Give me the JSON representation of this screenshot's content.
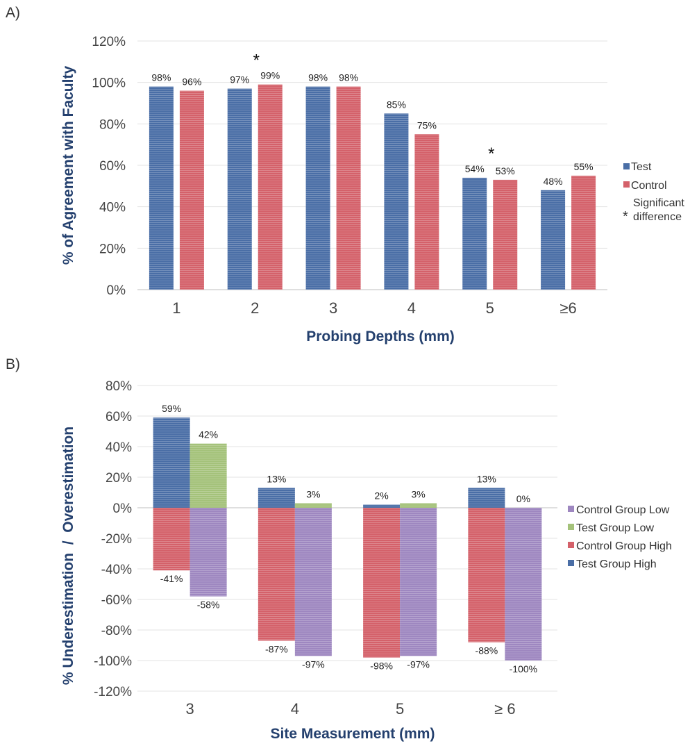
{
  "colors": {
    "test": "#4a6ea6",
    "control": "#d4616a",
    "test_low": "#a4c27a",
    "control_low": "#9e87c0",
    "axis_title": "#24406e",
    "grid": "#e3e3e3"
  },
  "chart_data": [
    {
      "panel_label": "A)",
      "type": "bar",
      "categories": [
        "1",
        "2",
        "3",
        "4",
        "5",
        "≥6"
      ],
      "series": [
        {
          "name": "Test",
          "values": [
            98,
            97,
            98,
            85,
            54,
            48
          ],
          "labels": [
            "98%",
            "97%",
            "98%",
            "85%",
            "54%",
            "48%"
          ]
        },
        {
          "name": "Control",
          "values": [
            96,
            99,
            98,
            75,
            53,
            55
          ],
          "labels": [
            "96%",
            "99%",
            "98%",
            "75%",
            "53%",
            "55%"
          ]
        }
      ],
      "xlabel": "Probing Depths (mm)",
      "ylabel": "% of Agreement with Faculty",
      "ylim": [
        0,
        120
      ],
      "yticks": [
        "0%",
        "20%",
        "40%",
        "60%",
        "80%",
        "100%",
        "120%"
      ],
      "significance_marker": "*",
      "significant_categories": [
        "2",
        "5"
      ],
      "legend": {
        "placement": "right",
        "items": [
          "Test",
          "Control"
        ],
        "note_symbol": "*",
        "note_lines": [
          "Significant",
          "difference"
        ]
      },
      "grid": true
    },
    {
      "panel_label": "B)",
      "type": "bar",
      "categories": [
        "3",
        "4",
        "5",
        "≥ 6"
      ],
      "series": [
        {
          "name": "Test Group High",
          "values": [
            59,
            13,
            2,
            13
          ],
          "labels": [
            "59%",
            "13%",
            "2%",
            "13%"
          ]
        },
        {
          "name": "Test Group Low",
          "values": [
            42,
            3,
            3,
            0
          ],
          "labels": [
            "42%",
            "3%",
            "3%",
            "0%"
          ]
        },
        {
          "name": "Control Group High",
          "values": [
            -41,
            -87,
            -98,
            -88
          ],
          "labels": [
            "-41%",
            "-87%",
            "-98%",
            "-88%"
          ]
        },
        {
          "name": "Control Group Low",
          "values": [
            -58,
            -97,
            -97,
            -100
          ],
          "labels": [
            "-58%",
            "-97%",
            "-97%",
            "-100%"
          ]
        }
      ],
      "xlabel": "Site Measurement (mm)",
      "ylabel": "% Underestimation  /  Overestimation",
      "ylim": [
        -120,
        80
      ],
      "yticks": [
        "-120%",
        "-100%",
        "-80%",
        "-60%",
        "-40%",
        "-20%",
        "0%",
        "20%",
        "40%",
        "60%",
        "80%"
      ],
      "legend": {
        "placement": "right",
        "items": [
          "Control Group Low",
          "Test Group Low",
          "Control Group High",
          "Test Group High"
        ]
      },
      "grid": true
    }
  ]
}
